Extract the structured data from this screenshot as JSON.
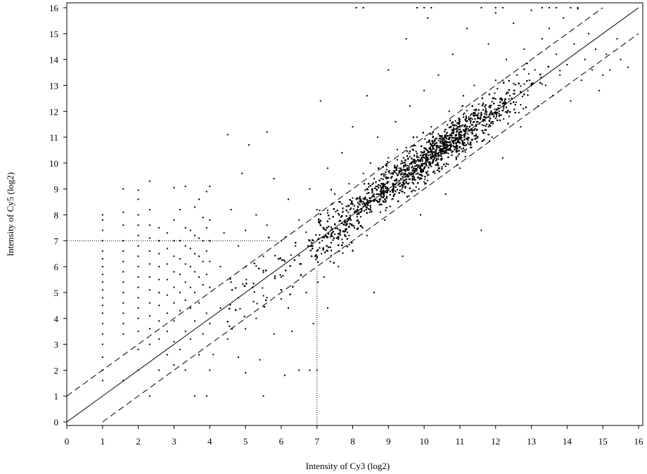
{
  "chart_data": {
    "type": "scatter",
    "title": "",
    "xlabel": "Intensity of Cy3 (log2)",
    "ylabel": "Intensity of Cy5 (log2)",
    "xlim": [
      0,
      16
    ],
    "ylim": [
      0,
      16
    ],
    "x_ticks": [
      "0",
      "1",
      "2",
      "3",
      "4",
      "5",
      "6",
      "7",
      "8",
      "9",
      "10",
      "11",
      "12",
      "13",
      "14",
      "15",
      "16"
    ],
    "y_ticks": [
      "0",
      "1",
      "2",
      "3",
      "4",
      "5",
      "6",
      "7",
      "8",
      "9",
      "10",
      "11",
      "12",
      "13",
      "14",
      "15",
      "16"
    ],
    "grid": false,
    "legend": "none",
    "point_color": "#000000",
    "reference_lines": [
      {
        "kind": "identity",
        "style": "solid",
        "slope": 1,
        "intercept": 0
      },
      {
        "kind": "upper-band",
        "style": "dashed",
        "slope": 1,
        "intercept": 1
      },
      {
        "kind": "lower-band",
        "style": "dashed",
        "slope": 1,
        "intercept": -1
      }
    ],
    "threshold_lines": [
      {
        "axis": "x",
        "value": 7,
        "style": "dotted"
      },
      {
        "axis": "y",
        "value": 7,
        "style": "dotted"
      }
    ],
    "series": [
      {
        "points": [
          [
            1.0,
            1.6
          ],
          [
            1.0,
            2.0
          ],
          [
            1.0,
            2.5
          ],
          [
            1.0,
            3.0
          ],
          [
            1.0,
            3.4
          ],
          [
            1.0,
            3.8
          ],
          [
            1.0,
            4.2
          ],
          [
            1.0,
            4.5
          ],
          [
            1.0,
            4.8
          ],
          [
            1.0,
            5.1
          ],
          [
            1.0,
            5.4
          ],
          [
            1.0,
            5.7
          ],
          [
            1.0,
            6.0
          ],
          [
            1.0,
            6.3
          ],
          [
            1.0,
            6.6
          ],
          [
            1.0,
            7.0
          ],
          [
            1.0,
            7.4
          ],
          [
            1.0,
            7.8
          ],
          [
            1.0,
            8.0
          ],
          [
            1.58,
            1.6
          ],
          [
            1.58,
            3.4
          ],
          [
            1.58,
            3.8
          ],
          [
            1.58,
            4.2
          ],
          [
            1.58,
            4.6
          ],
          [
            1.58,
            5.0
          ],
          [
            1.58,
            5.4
          ],
          [
            1.58,
            5.8
          ],
          [
            1.58,
            6.2
          ],
          [
            1.58,
            6.6
          ],
          [
            1.58,
            7.0
          ],
          [
            1.58,
            7.6
          ],
          [
            1.58,
            8.1
          ],
          [
            1.58,
            9.0
          ],
          [
            2.0,
            2.0
          ],
          [
            2.0,
            2.8
          ],
          [
            2.0,
            3.5
          ],
          [
            2.0,
            4.0
          ],
          [
            2.0,
            4.4
          ],
          [
            2.0,
            4.8
          ],
          [
            2.0,
            5.2
          ],
          [
            2.0,
            5.6
          ],
          [
            2.0,
            6.0
          ],
          [
            2.0,
            6.4
          ],
          [
            2.0,
            6.8
          ],
          [
            2.0,
            7.2
          ],
          [
            2.0,
            7.6
          ],
          [
            2.0,
            8.0
          ],
          [
            2.0,
            8.6
          ],
          [
            2.0,
            8.95
          ],
          [
            2.32,
            1.0
          ],
          [
            2.32,
            3.0
          ],
          [
            2.32,
            3.6
          ],
          [
            2.32,
            4.1
          ],
          [
            2.32,
            4.6
          ],
          [
            2.32,
            5.1
          ],
          [
            2.32,
            5.6
          ],
          [
            2.32,
            6.1
          ],
          [
            2.32,
            6.6
          ],
          [
            2.32,
            7.1
          ],
          [
            2.32,
            7.6
          ],
          [
            2.32,
            8.2
          ],
          [
            2.32,
            9.3
          ],
          [
            2.58,
            2.0
          ],
          [
            2.58,
            3.2
          ],
          [
            2.58,
            3.9
          ],
          [
            2.58,
            4.5
          ],
          [
            2.58,
            5.0
          ],
          [
            2.58,
            5.5
          ],
          [
            2.58,
            6.0
          ],
          [
            2.58,
            6.5
          ],
          [
            2.58,
            7.0
          ],
          [
            2.58,
            7.5
          ],
          [
            2.81,
            2.6
          ],
          [
            2.81,
            3.5
          ],
          [
            2.81,
            4.2
          ],
          [
            2.81,
            4.9
          ],
          [
            2.81,
            5.5
          ],
          [
            2.81,
            6.1
          ],
          [
            2.81,
            6.7
          ],
          [
            2.81,
            7.3
          ],
          [
            3.0,
            2.2
          ],
          [
            3.0,
            3.1
          ],
          [
            3.0,
            3.9
          ],
          [
            3.0,
            4.6
          ],
          [
            3.0,
            5.2
          ],
          [
            3.0,
            5.8
          ],
          [
            3.0,
            6.4
          ],
          [
            3.0,
            7.0
          ],
          [
            3.0,
            7.8
          ],
          [
            3.0,
            9.05
          ],
          [
            3.17,
            2.8
          ],
          [
            3.17,
            4.3
          ],
          [
            3.17,
            5.0
          ],
          [
            3.17,
            5.7
          ],
          [
            3.17,
            6.3
          ],
          [
            3.17,
            7.0
          ],
          [
            3.17,
            8.2
          ],
          [
            3.32,
            2.0
          ],
          [
            3.32,
            3.5
          ],
          [
            3.32,
            4.7
          ],
          [
            3.32,
            5.4
          ],
          [
            3.32,
            6.1
          ],
          [
            3.32,
            6.8
          ],
          [
            3.32,
            7.5
          ],
          [
            3.32,
            9.1
          ],
          [
            3.46,
            3.2
          ],
          [
            3.46,
            4.4
          ],
          [
            3.46,
            5.2
          ],
          [
            3.46,
            6.0
          ],
          [
            3.46,
            6.7
          ],
          [
            3.46,
            7.4
          ],
          [
            3.58,
            1.0
          ],
          [
            3.58,
            3.9
          ],
          [
            3.58,
            5.0
          ],
          [
            3.58,
            5.8
          ],
          [
            3.58,
            6.5
          ],
          [
            3.58,
            7.2
          ],
          [
            3.58,
            8.3
          ],
          [
            3.7,
            2.6
          ],
          [
            3.7,
            4.6
          ],
          [
            3.7,
            5.6
          ],
          [
            3.7,
            6.4
          ],
          [
            3.7,
            7.1
          ],
          [
            3.7,
            8.6
          ],
          [
            3.81,
            3.4
          ],
          [
            3.81,
            5.3
          ],
          [
            3.81,
            6.2
          ],
          [
            3.81,
            7.0
          ],
          [
            3.81,
            7.9
          ],
          [
            3.91,
            1.0
          ],
          [
            3.91,
            4.2
          ],
          [
            3.91,
            5.7
          ],
          [
            3.91,
            6.6
          ],
          [
            3.91,
            7.5
          ],
          [
            3.91,
            8.9
          ],
          [
            4.0,
            2.0
          ],
          [
            4.0,
            3.8
          ],
          [
            4.0,
            5.2
          ],
          [
            4.0,
            6.2
          ],
          [
            4.0,
            7.0
          ],
          [
            4.0,
            7.8
          ],
          [
            4.0,
            9.1
          ],
          [
            4.1,
            2.6
          ],
          [
            4.3,
            4.4
          ],
          [
            4.3,
            6.0
          ],
          [
            4.4,
            7.3
          ],
          [
            4.5,
            11.1
          ],
          [
            4.5,
            3.2
          ],
          [
            4.6,
            5.4
          ],
          [
            4.6,
            8.2
          ],
          [
            4.8,
            2.5
          ],
          [
            4.8,
            4.8
          ],
          [
            4.8,
            6.8
          ],
          [
            4.9,
            9.6
          ],
          [
            5.0,
            1.9
          ],
          [
            5.0,
            3.6
          ],
          [
            5.0,
            6.0
          ],
          [
            5.0,
            7.4
          ],
          [
            5.1,
            10.7
          ],
          [
            5.2,
            5.2
          ],
          [
            5.3,
            4.0
          ],
          [
            5.3,
            8.0
          ],
          [
            5.4,
            2.4
          ],
          [
            5.5,
            6.4
          ],
          [
            5.5,
            1.0
          ],
          [
            5.6,
            4.8
          ],
          [
            5.6,
            7.6
          ],
          [
            5.6,
            11.2
          ],
          [
            5.8,
            3.4
          ],
          [
            5.8,
            9.4
          ],
          [
            6.0,
            5.6
          ],
          [
            6.0,
            7.0
          ],
          [
            6.1,
            1.8
          ],
          [
            6.2,
            4.4
          ],
          [
            6.2,
            8.6
          ],
          [
            6.3,
            3.5
          ],
          [
            6.4,
            6.8
          ],
          [
            6.5,
            2.0
          ],
          [
            6.5,
            7.8
          ],
          [
            6.7,
            5.0
          ],
          [
            6.8,
            9.0
          ],
          [
            6.8,
            2.0
          ],
          [
            6.9,
            3.8
          ],
          [
            6.9,
            7.0
          ],
          [
            7.0,
            2.0
          ],
          [
            7.0,
            6.4
          ],
          [
            7.0,
            8.2
          ],
          [
            7.1,
            12.4
          ],
          [
            7.2,
            5.6
          ],
          [
            7.3,
            9.8
          ],
          [
            7.3,
            4.4
          ],
          [
            7.4,
            7.2
          ],
          [
            7.5,
            8.8
          ],
          [
            7.6,
            6.0
          ],
          [
            7.7,
            10.4
          ],
          [
            7.8,
            7.6
          ],
          [
            7.9,
            9.2
          ],
          [
            8.0,
            11.4
          ],
          [
            8.0,
            6.6
          ],
          [
            8.2,
            8.4
          ],
          [
            8.3,
            9.6
          ],
          [
            8.4,
            7.2
          ],
          [
            8.4,
            12.6
          ],
          [
            8.5,
            10.0
          ],
          [
            8.6,
            5.0
          ],
          [
            8.6,
            8.8
          ],
          [
            8.7,
            11.0
          ],
          [
            8.8,
            9.4
          ],
          [
            8.9,
            7.8
          ],
          [
            9.0,
            10.2
          ],
          [
            9.0,
            13.6
          ],
          [
            9.1,
            8.6
          ],
          [
            9.2,
            11.6
          ],
          [
            9.3,
            9.8
          ],
          [
            9.4,
            6.4
          ],
          [
            9.5,
            10.6
          ],
          [
            9.5,
            14.8
          ],
          [
            9.6,
            12.2
          ],
          [
            9.7,
            9.2
          ],
          [
            9.8,
            11.0
          ],
          [
            9.9,
            8.0
          ],
          [
            10.0,
            10.4
          ],
          [
            10.0,
            12.8
          ],
          [
            10.1,
            15.6
          ],
          [
            10.2,
            11.4
          ],
          [
            10.3,
            9.6
          ],
          [
            10.4,
            13.4
          ],
          [
            10.5,
            10.8
          ],
          [
            10.6,
            8.8
          ],
          [
            10.7,
            12.0
          ],
          [
            10.8,
            14.2
          ],
          [
            10.9,
            11.2
          ],
          [
            11.0,
            9.8
          ],
          [
            11.1,
            12.6
          ],
          [
            11.2,
            15.2
          ],
          [
            11.3,
            10.6
          ],
          [
            11.4,
            13.0
          ],
          [
            11.5,
            11.6
          ],
          [
            11.6,
            7.4
          ],
          [
            11.7,
            12.2
          ],
          [
            11.8,
            14.6
          ],
          [
            11.9,
            11.0
          ],
          [
            12.0,
            13.2
          ],
          [
            12.0,
            15.8
          ],
          [
            12.1,
            12.0
          ],
          [
            12.2,
            10.2
          ],
          [
            12.3,
            14.0
          ],
          [
            12.4,
            12.6
          ],
          [
            12.5,
            15.4
          ],
          [
            12.6,
            13.4
          ],
          [
            12.7,
            11.4
          ],
          [
            12.8,
            14.4
          ],
          [
            12.9,
            12.8
          ],
          [
            13.0,
            15.9
          ],
          [
            13.1,
            13.6
          ],
          [
            13.2,
            12.2
          ],
          [
            13.3,
            14.8
          ],
          [
            13.4,
            13.0
          ],
          [
            13.5,
            15.2
          ],
          [
            13.6,
            12.6
          ],
          [
            13.7,
            14.2
          ],
          [
            13.8,
            13.4
          ],
          [
            13.9,
            15.6
          ],
          [
            14.0,
            13.8
          ],
          [
            14.1,
            12.4
          ],
          [
            14.2,
            14.6
          ],
          [
            14.3,
            15.96
          ],
          [
            14.4,
            13.2
          ],
          [
            14.5,
            14.0
          ],
          [
            14.6,
            15.0
          ],
          [
            14.7,
            13.6
          ],
          [
            14.8,
            14.4
          ],
          [
            14.9,
            12.8
          ],
          [
            15.0,
            13.4
          ],
          [
            15.1,
            14.2
          ],
          [
            15.2,
            13.6
          ],
          [
            15.4,
            14.8
          ],
          [
            15.5,
            14.0
          ],
          [
            15.7,
            13.7
          ],
          [
            8.1,
            16.0
          ],
          [
            8.3,
            16.0
          ],
          [
            9.8,
            16.0
          ],
          [
            10.0,
            16.0
          ],
          [
            10.2,
            16.0
          ],
          [
            11.6,
            16.0
          ],
          [
            12.0,
            16.0
          ],
          [
            12.2,
            16.0
          ],
          [
            13.3,
            16.0
          ],
          [
            13.5,
            16.0
          ],
          [
            13.7,
            16.0
          ],
          [
            14.1,
            16.0
          ],
          [
            14.3,
            16.0
          ]
        ],
        "density_model": {
          "note": "main cloud around the identity line, most dense between 8 and 13",
          "center_x_range": [
            4.5,
            15.0
          ],
          "y_offset_mean": 0.0,
          "y_spread": 0.8
        }
      }
    ]
  }
}
